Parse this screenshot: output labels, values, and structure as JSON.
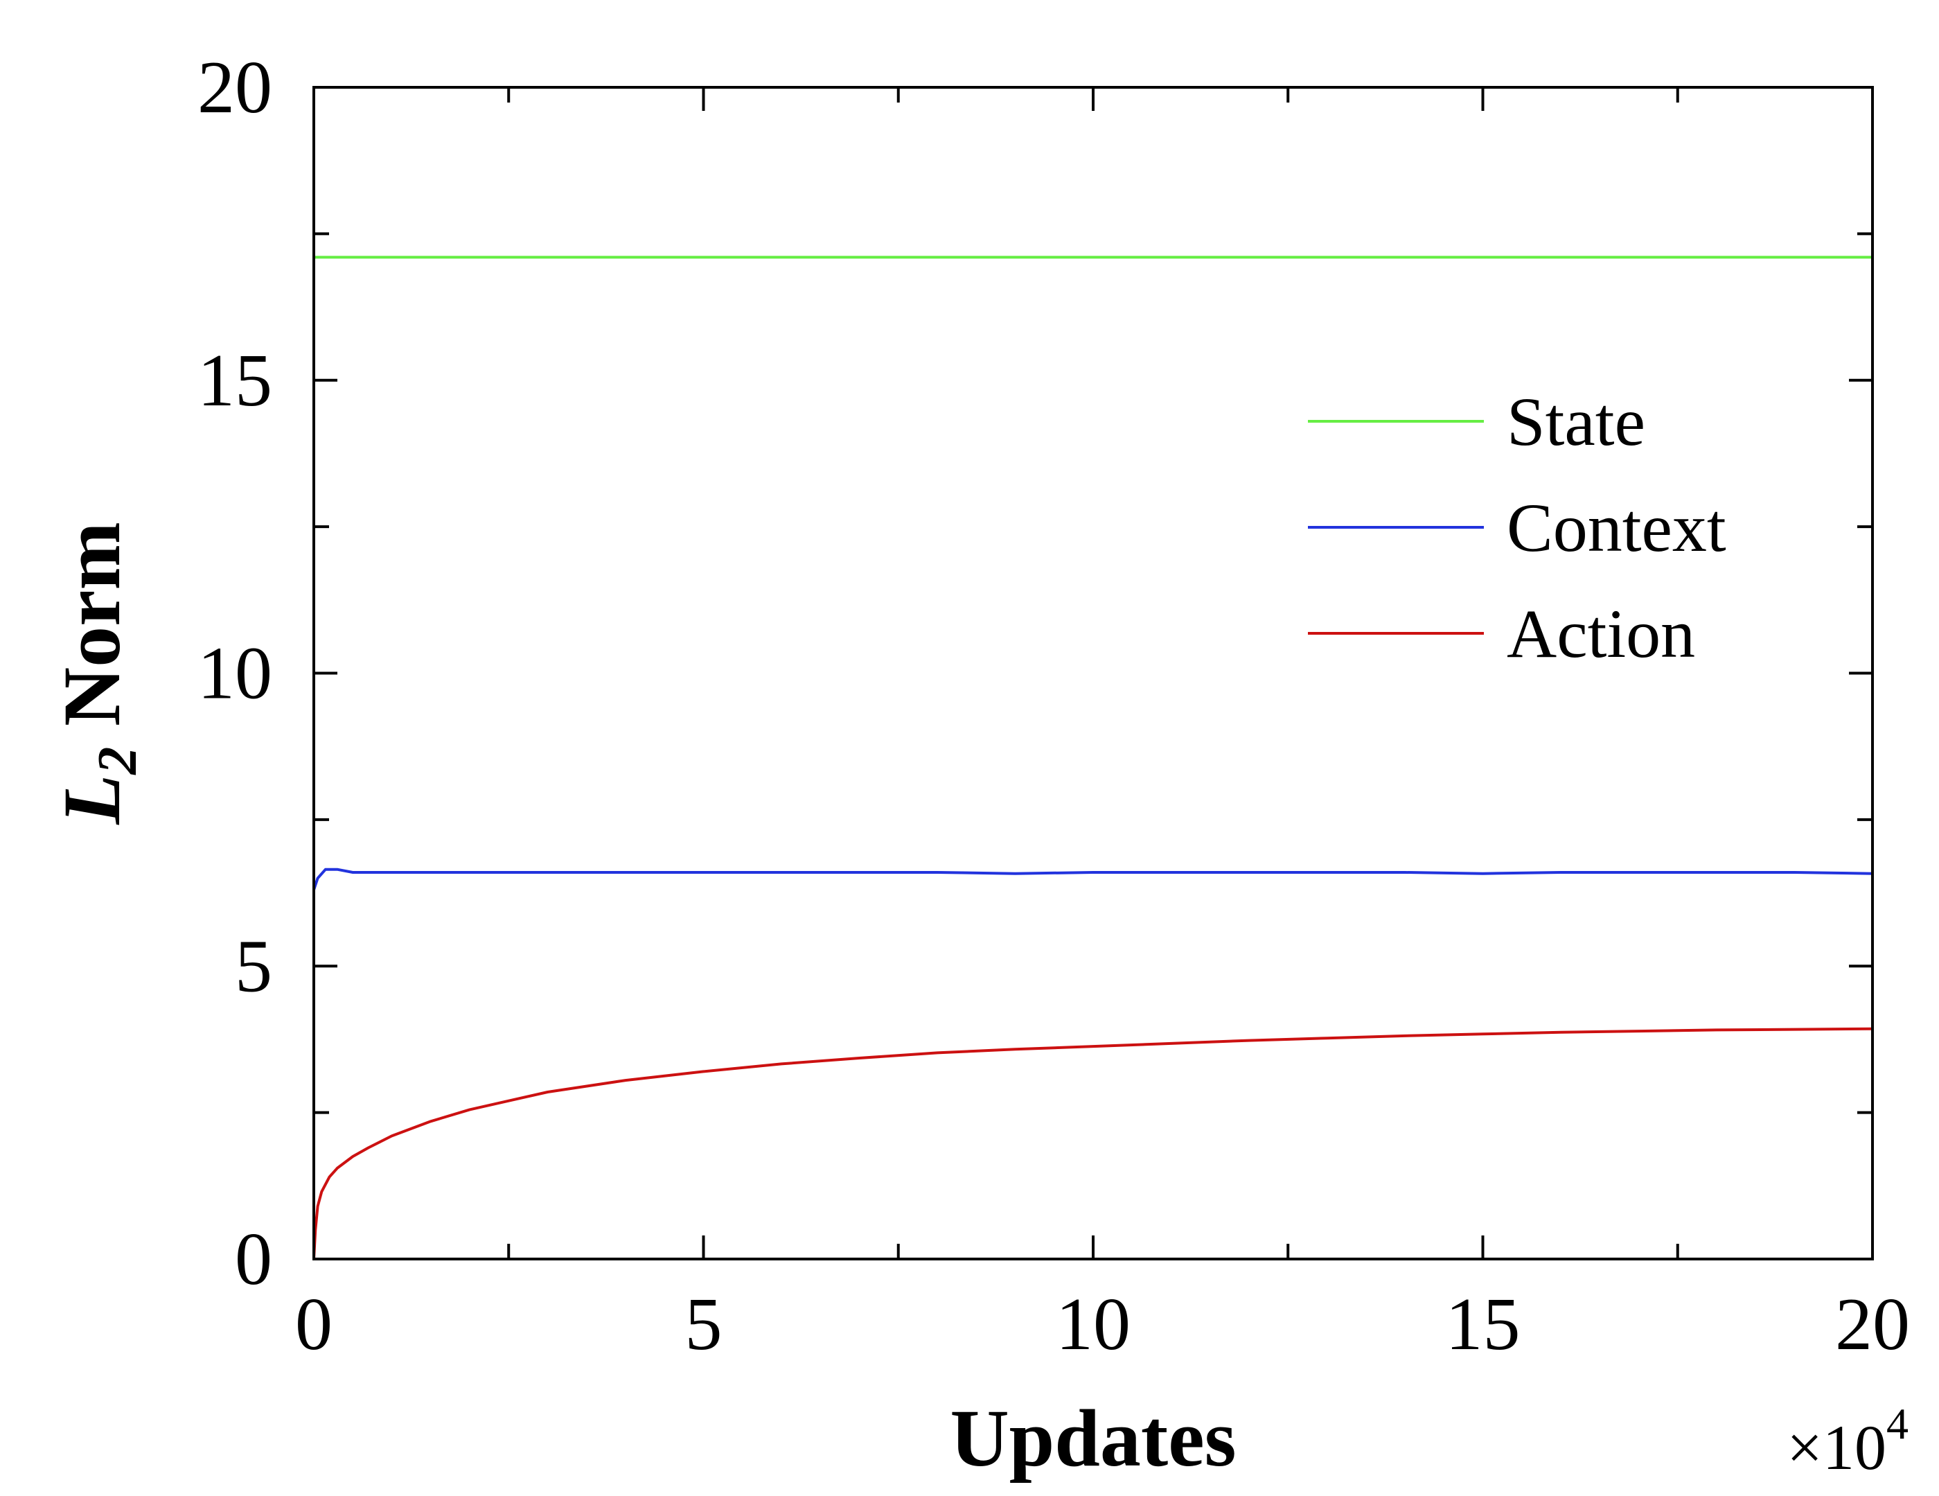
{
  "chart_data": {
    "type": "line",
    "xlabel": "Updates",
    "ylabel": "L",
    "ylabel_subscript": "2",
    "ylabel_suffix": "Norm",
    "x_multiplier": "×10",
    "x_multiplier_exp": "4",
    "xlim": [
      0,
      20
    ],
    "ylim": [
      0,
      20
    ],
    "x_ticks": [
      0,
      5,
      10,
      15,
      20
    ],
    "y_ticks": [
      0,
      5,
      10,
      15,
      20
    ],
    "x_minor_ticks": [
      2.5,
      7.5,
      12.5,
      17.5
    ],
    "y_minor_ticks": [
      2.5,
      7.5,
      12.5,
      17.5
    ],
    "grid": false,
    "legend_position": "right",
    "series": [
      {
        "name": "State",
        "color": "#66ee44",
        "x": [
          0,
          1,
          2,
          3,
          4,
          5,
          6,
          7,
          8,
          9,
          10,
          11,
          12,
          13,
          14,
          15,
          16,
          17,
          18,
          19,
          20
        ],
        "y": [
          17.1,
          17.1,
          17.1,
          17.1,
          17.1,
          17.1,
          17.1,
          17.1,
          17.1,
          17.1,
          17.1,
          17.1,
          17.1,
          17.1,
          17.1,
          17.1,
          17.1,
          17.1,
          17.1,
          17.1,
          17.1
        ]
      },
      {
        "name": "Context",
        "color": "#2233dd",
        "x": [
          0,
          0.05,
          0.15,
          0.3,
          0.5,
          1,
          2,
          3,
          4,
          5,
          6,
          7,
          8,
          9,
          10,
          11,
          12,
          13,
          14,
          15,
          16,
          17,
          18,
          19,
          20
        ],
        "y": [
          6.3,
          6.5,
          6.65,
          6.65,
          6.6,
          6.6,
          6.6,
          6.6,
          6.6,
          6.6,
          6.6,
          6.6,
          6.6,
          6.58,
          6.6,
          6.6,
          6.6,
          6.6,
          6.6,
          6.58,
          6.6,
          6.6,
          6.6,
          6.6,
          6.58
        ]
      },
      {
        "name": "Action",
        "color": "#cc1111",
        "x": [
          0,
          0.02,
          0.05,
          0.1,
          0.2,
          0.3,
          0.5,
          0.7,
          1,
          1.5,
          2,
          2.5,
          3,
          4,
          5,
          6,
          7,
          8,
          9,
          10,
          11,
          12,
          13,
          14,
          15,
          16,
          17,
          18,
          19,
          20
        ],
        "y": [
          0,
          0.5,
          0.9,
          1.15,
          1.4,
          1.55,
          1.75,
          1.9,
          2.1,
          2.35,
          2.55,
          2.7,
          2.85,
          3.05,
          3.2,
          3.33,
          3.43,
          3.52,
          3.58,
          3.63,
          3.68,
          3.73,
          3.77,
          3.81,
          3.84,
          3.87,
          3.89,
          3.91,
          3.92,
          3.93
        ]
      }
    ]
  }
}
